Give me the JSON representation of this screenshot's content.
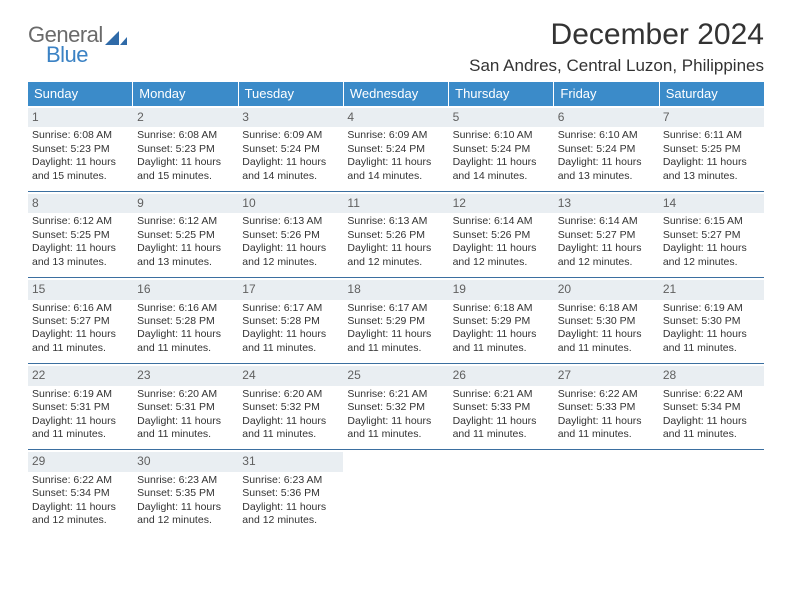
{
  "logo": {
    "word1": "General",
    "word2": "Blue",
    "color_general": "#6a6a6a",
    "color_blue": "#3b82c4",
    "triangle_color": "#2f6aa8"
  },
  "title": "December 2024",
  "location": "San Andres, Central Luzon, Philippines",
  "header_bg": "#3b8bc9",
  "daynum_bg": "#e9eef2",
  "rule_color": "#3b6fa0",
  "text_color": "#333333",
  "day_names": [
    "Sunday",
    "Monday",
    "Tuesday",
    "Wednesday",
    "Thursday",
    "Friday",
    "Saturday"
  ],
  "weeks": [
    [
      {
        "n": "1",
        "sr": "Sunrise: 6:08 AM",
        "ss": "Sunset: 5:23 PM",
        "dl": "Daylight: 11 hours and 15 minutes."
      },
      {
        "n": "2",
        "sr": "Sunrise: 6:08 AM",
        "ss": "Sunset: 5:23 PM",
        "dl": "Daylight: 11 hours and 15 minutes."
      },
      {
        "n": "3",
        "sr": "Sunrise: 6:09 AM",
        "ss": "Sunset: 5:24 PM",
        "dl": "Daylight: 11 hours and 14 minutes."
      },
      {
        "n": "4",
        "sr": "Sunrise: 6:09 AM",
        "ss": "Sunset: 5:24 PM",
        "dl": "Daylight: 11 hours and 14 minutes."
      },
      {
        "n": "5",
        "sr": "Sunrise: 6:10 AM",
        "ss": "Sunset: 5:24 PM",
        "dl": "Daylight: 11 hours and 14 minutes."
      },
      {
        "n": "6",
        "sr": "Sunrise: 6:10 AM",
        "ss": "Sunset: 5:24 PM",
        "dl": "Daylight: 11 hours and 13 minutes."
      },
      {
        "n": "7",
        "sr": "Sunrise: 6:11 AM",
        "ss": "Sunset: 5:25 PM",
        "dl": "Daylight: 11 hours and 13 minutes."
      }
    ],
    [
      {
        "n": "8",
        "sr": "Sunrise: 6:12 AM",
        "ss": "Sunset: 5:25 PM",
        "dl": "Daylight: 11 hours and 13 minutes."
      },
      {
        "n": "9",
        "sr": "Sunrise: 6:12 AM",
        "ss": "Sunset: 5:25 PM",
        "dl": "Daylight: 11 hours and 13 minutes."
      },
      {
        "n": "10",
        "sr": "Sunrise: 6:13 AM",
        "ss": "Sunset: 5:26 PM",
        "dl": "Daylight: 11 hours and 12 minutes."
      },
      {
        "n": "11",
        "sr": "Sunrise: 6:13 AM",
        "ss": "Sunset: 5:26 PM",
        "dl": "Daylight: 11 hours and 12 minutes."
      },
      {
        "n": "12",
        "sr": "Sunrise: 6:14 AM",
        "ss": "Sunset: 5:26 PM",
        "dl": "Daylight: 11 hours and 12 minutes."
      },
      {
        "n": "13",
        "sr": "Sunrise: 6:14 AM",
        "ss": "Sunset: 5:27 PM",
        "dl": "Daylight: 11 hours and 12 minutes."
      },
      {
        "n": "14",
        "sr": "Sunrise: 6:15 AM",
        "ss": "Sunset: 5:27 PM",
        "dl": "Daylight: 11 hours and 12 minutes."
      }
    ],
    [
      {
        "n": "15",
        "sr": "Sunrise: 6:16 AM",
        "ss": "Sunset: 5:27 PM",
        "dl": "Daylight: 11 hours and 11 minutes."
      },
      {
        "n": "16",
        "sr": "Sunrise: 6:16 AM",
        "ss": "Sunset: 5:28 PM",
        "dl": "Daylight: 11 hours and 11 minutes."
      },
      {
        "n": "17",
        "sr": "Sunrise: 6:17 AM",
        "ss": "Sunset: 5:28 PM",
        "dl": "Daylight: 11 hours and 11 minutes."
      },
      {
        "n": "18",
        "sr": "Sunrise: 6:17 AM",
        "ss": "Sunset: 5:29 PM",
        "dl": "Daylight: 11 hours and 11 minutes."
      },
      {
        "n": "19",
        "sr": "Sunrise: 6:18 AM",
        "ss": "Sunset: 5:29 PM",
        "dl": "Daylight: 11 hours and 11 minutes."
      },
      {
        "n": "20",
        "sr": "Sunrise: 6:18 AM",
        "ss": "Sunset: 5:30 PM",
        "dl": "Daylight: 11 hours and 11 minutes."
      },
      {
        "n": "21",
        "sr": "Sunrise: 6:19 AM",
        "ss": "Sunset: 5:30 PM",
        "dl": "Daylight: 11 hours and 11 minutes."
      }
    ],
    [
      {
        "n": "22",
        "sr": "Sunrise: 6:19 AM",
        "ss": "Sunset: 5:31 PM",
        "dl": "Daylight: 11 hours and 11 minutes."
      },
      {
        "n": "23",
        "sr": "Sunrise: 6:20 AM",
        "ss": "Sunset: 5:31 PM",
        "dl": "Daylight: 11 hours and 11 minutes."
      },
      {
        "n": "24",
        "sr": "Sunrise: 6:20 AM",
        "ss": "Sunset: 5:32 PM",
        "dl": "Daylight: 11 hours and 11 minutes."
      },
      {
        "n": "25",
        "sr": "Sunrise: 6:21 AM",
        "ss": "Sunset: 5:32 PM",
        "dl": "Daylight: 11 hours and 11 minutes."
      },
      {
        "n": "26",
        "sr": "Sunrise: 6:21 AM",
        "ss": "Sunset: 5:33 PM",
        "dl": "Daylight: 11 hours and 11 minutes."
      },
      {
        "n": "27",
        "sr": "Sunrise: 6:22 AM",
        "ss": "Sunset: 5:33 PM",
        "dl": "Daylight: 11 hours and 11 minutes."
      },
      {
        "n": "28",
        "sr": "Sunrise: 6:22 AM",
        "ss": "Sunset: 5:34 PM",
        "dl": "Daylight: 11 hours and 11 minutes."
      }
    ],
    [
      {
        "n": "29",
        "sr": "Sunrise: 6:22 AM",
        "ss": "Sunset: 5:34 PM",
        "dl": "Daylight: 11 hours and 12 minutes."
      },
      {
        "n": "30",
        "sr": "Sunrise: 6:23 AM",
        "ss": "Sunset: 5:35 PM",
        "dl": "Daylight: 11 hours and 12 minutes."
      },
      {
        "n": "31",
        "sr": "Sunrise: 6:23 AM",
        "ss": "Sunset: 5:36 PM",
        "dl": "Daylight: 11 hours and 12 minutes."
      },
      {
        "empty": true
      },
      {
        "empty": true
      },
      {
        "empty": true
      },
      {
        "empty": true
      }
    ]
  ]
}
